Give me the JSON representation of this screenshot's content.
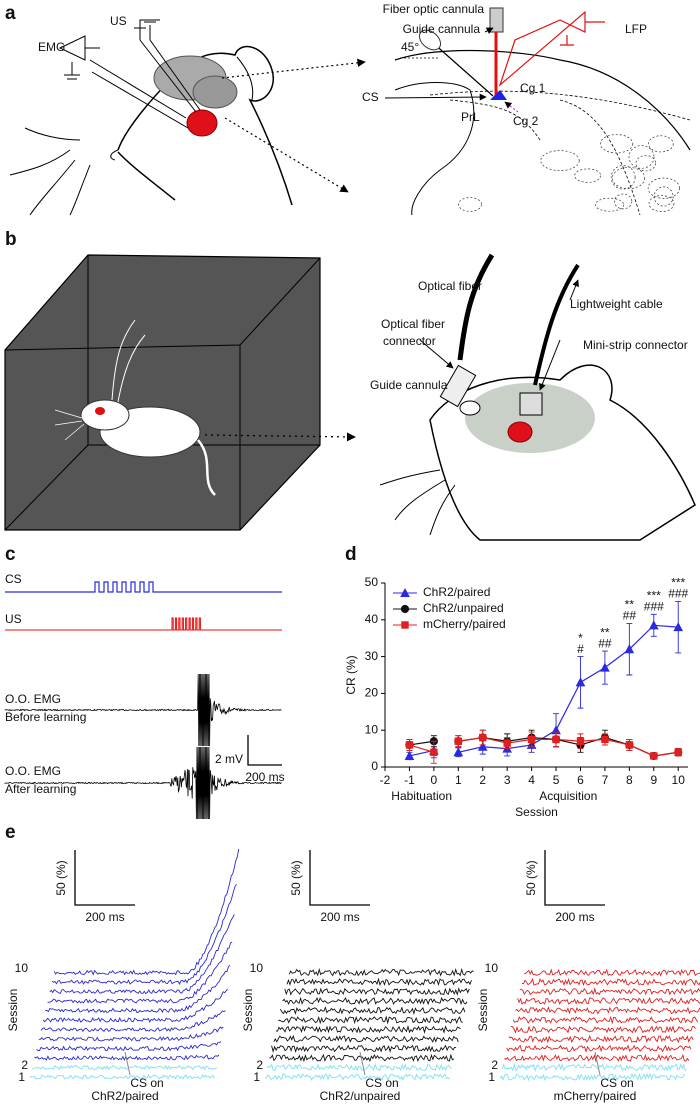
{
  "panel_a": {
    "label": "a",
    "us": "US",
    "emg": "EMG",
    "fiber": "Fiber optic cannula",
    "guide": "Guide cannula",
    "angle": "45°",
    "lfp": "LFP",
    "cs": "CS",
    "cg1": "Cg 1",
    "prl": "PrL",
    "cg2": "Cg 2"
  },
  "panel_b": {
    "label": "b",
    "fiber": "Optical fiber",
    "cable": "Lightweight cable",
    "connector": [
      "Optical fiber",
      "connector"
    ],
    "strip": "Mini-strip connector",
    "guide": "Guide cannula"
  },
  "panel_c": {
    "label": "c",
    "cs": "CS",
    "us": "US",
    "emg_before": [
      "O.O. EMG",
      "Before learning"
    ],
    "scale_y": "2 mV",
    "scale_x": "200 ms",
    "emg_after": [
      "O.O. EMG",
      "After learning"
    ]
  },
  "panel_d": {
    "label": "d"
  },
  "chart_data": {
    "type": "line",
    "ylabel": "CR (%)",
    "xlabel": "Session",
    "x": [
      -1,
      0,
      null,
      1,
      2,
      3,
      4,
      5,
      6,
      7,
      8,
      9,
      10
    ],
    "xlim": [
      -2,
      10.4
    ],
    "xticks": [
      -2,
      -1,
      0,
      1,
      2,
      3,
      4,
      5,
      6,
      7,
      8,
      9,
      10
    ],
    "ylim": [
      0,
      50
    ],
    "yticks": [
      0,
      10,
      20,
      30,
      40,
      50
    ],
    "x_groups": [
      {
        "label": "Habituation",
        "range": [
          -1,
          0
        ]
      },
      {
        "label": "Acquisition",
        "range": [
          1,
          10
        ]
      }
    ],
    "legend": "upper left",
    "series": [
      {
        "name": "ChR2/paired",
        "color": "#2a2ae0",
        "marker": "triangle",
        "values": [
          3,
          4.5,
          null,
          4,
          5.5,
          5,
          6,
          10,
          23,
          27,
          32,
          38.5,
          38
        ],
        "errors": [
          1,
          2,
          null,
          1.2,
          2,
          2,
          2,
          4.5,
          7,
          4.5,
          7,
          3,
          7
        ]
      },
      {
        "name": "ChR2/unpaired",
        "color": "#111111",
        "marker": "circle",
        "values": [
          6,
          7,
          null,
          7,
          8,
          7,
          8,
          7.5,
          6,
          8,
          6,
          3,
          4
        ],
        "errors": [
          1.5,
          1.5,
          null,
          1.5,
          2,
          2,
          2,
          2,
          2,
          2,
          1.5,
          0.8,
          1
        ]
      },
      {
        "name": "mCherry/paired",
        "color": "#e02020",
        "marker": "square",
        "values": [
          6,
          4,
          null,
          7,
          8,
          6.5,
          7.5,
          7.5,
          7,
          7.5,
          6,
          3,
          4
        ],
        "errors": [
          1.5,
          3,
          null,
          1.5,
          2,
          1.5,
          2,
          2,
          2,
          1.5,
          1.5,
          0.8,
          1
        ]
      }
    ],
    "annotations": [
      {
        "x": 6,
        "text": [
          "*",
          "#"
        ]
      },
      {
        "x": 7,
        "text": [
          "**",
          "##"
        ]
      },
      {
        "x": 8,
        "text": [
          "**",
          "##"
        ]
      },
      {
        "x": 9,
        "text": [
          "***",
          "###"
        ]
      },
      {
        "x": 10,
        "text": [
          "***",
          "###"
        ]
      }
    ]
  },
  "panel_e": {
    "label": "e",
    "groups": [
      {
        "title": "ChR2/paired",
        "color": "#2a2ad0",
        "scale_y": "50 (%)",
        "scale_x": "200 ms",
        "axis": "Session",
        "top": "10",
        "second": "2",
        "first": "1",
        "cs_on": "CS on"
      },
      {
        "title": "ChR2/unpaired",
        "color": "#111111",
        "scale_y": "50 (%)",
        "scale_x": "200 ms",
        "axis": "Session",
        "top": "10",
        "second": "2",
        "first": "1",
        "cs_on": "CS on"
      },
      {
        "title": "mCherry/paired",
        "color": "#e02020",
        "scale_y": "50 (%)",
        "scale_x": "200 ms",
        "axis": "Session",
        "top": "10",
        "second": "2",
        "first": "1",
        "cs_on": "CS on"
      }
    ]
  }
}
